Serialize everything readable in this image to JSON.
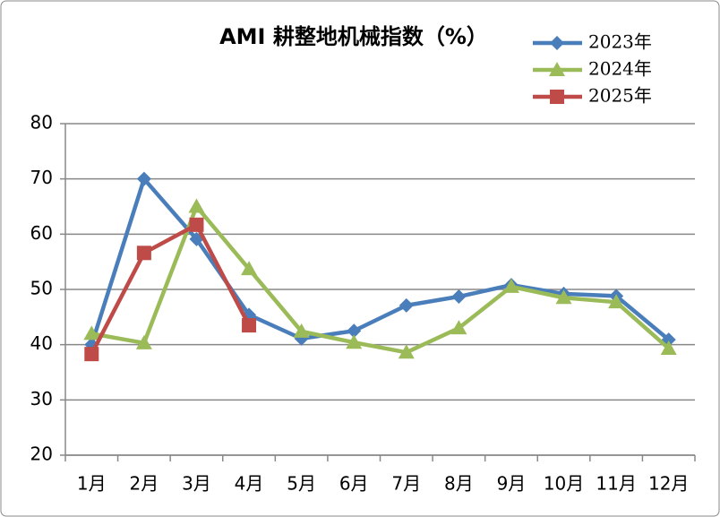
{
  "chart_data": {
    "type": "line",
    "title": "AMI 耕整地机械指数（%）",
    "categories": [
      "1月",
      "2月",
      "3月",
      "4月",
      "5月",
      "6月",
      "7月",
      "8月",
      "9月",
      "10月",
      "11月",
      "12月"
    ],
    "series": [
      {
        "name": "2023年",
        "color": "#4a7ebb",
        "marker": "diamond",
        "values": [
          40,
          70,
          59.1,
          45.4,
          41.1,
          42.5,
          47.1,
          48.7,
          50.8,
          49.2,
          48.8,
          40.9
        ]
      },
      {
        "name": "2024年",
        "color": "#9bbb59",
        "marker": "triangle",
        "values": [
          42,
          40.3,
          65,
          53.7,
          42.4,
          40.4,
          38.6,
          43,
          50.5,
          48.5,
          47.7,
          39.3
        ]
      },
      {
        "name": "2025年",
        "color": "#be4b48",
        "marker": "square",
        "values": [
          38.3,
          56.6,
          61.7,
          43.5,
          null,
          null,
          null,
          null,
          null,
          null,
          null,
          null
        ]
      }
    ],
    "ylim": [
      20,
      80
    ],
    "yticks": [
      20,
      30,
      40,
      50,
      60,
      70,
      80
    ],
    "grid": true,
    "legend": "top-right"
  }
}
